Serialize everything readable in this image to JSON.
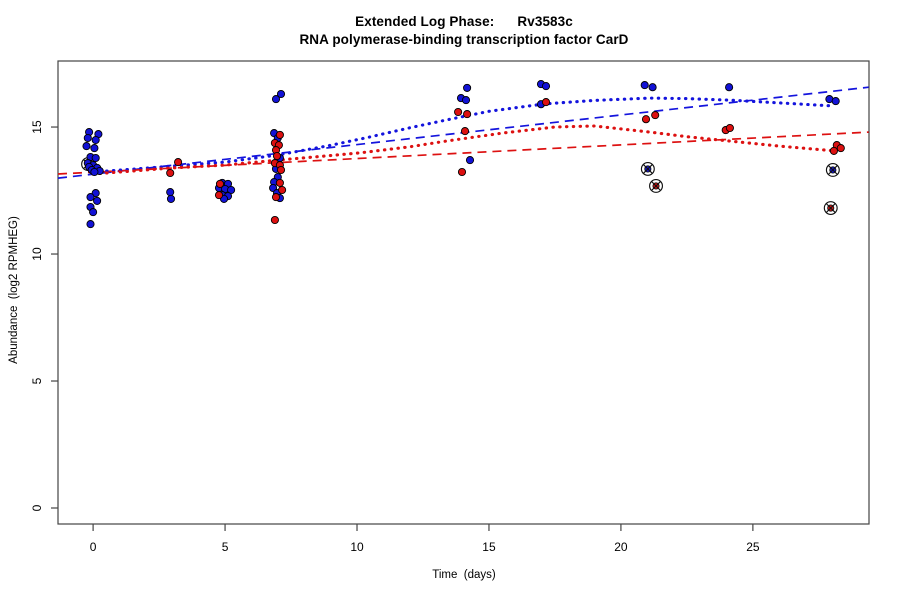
{
  "chart_data": {
    "type": "scatter",
    "title_line1": "Extended Log Phase:      Rv3583c",
    "title_line2": "RNA polymerase-binding transcription factor CarD",
    "xlabel": "Time  (days)",
    "ylabel": "Abundance  (log2 RPMHEG)",
    "xlim": [
      -1.33,
      29.4
    ],
    "ylim": [
      -0.63,
      17.6
    ],
    "x_ticks": [
      0,
      5,
      10,
      15,
      20,
      25
    ],
    "y_ticks": [
      0,
      5,
      10,
      15
    ],
    "grid": false,
    "legend": "none",
    "colors": {
      "blue": "#1414dd",
      "red": "#dd1111",
      "box": "#444444",
      "mark": "#111111"
    },
    "series": [
      {
        "name": "blue-group-points",
        "color": "#1212d6",
        "points": [
          [
            -0.15,
            14.8
          ],
          [
            0.2,
            14.72
          ],
          [
            -0.2,
            14.57
          ],
          [
            0.1,
            14.49
          ],
          [
            -0.25,
            14.25
          ],
          [
            0.05,
            14.17
          ],
          [
            -0.1,
            13.82
          ],
          [
            0.1,
            13.78
          ],
          [
            -0.2,
            13.58
          ],
          [
            0.0,
            13.5
          ],
          [
            -0.15,
            13.43
          ],
          [
            0.15,
            13.39
          ],
          [
            -0.05,
            13.31
          ],
          [
            0.25,
            13.27
          ],
          [
            0.05,
            13.23
          ],
          [
            0.1,
            12.4
          ],
          [
            -0.1,
            12.24
          ],
          [
            0.15,
            12.09
          ],
          [
            -0.1,
            11.85
          ],
          [
            0.0,
            11.65
          ],
          [
            -0.1,
            11.18
          ],
          [
            2.92,
            12.44
          ],
          [
            2.95,
            12.17
          ],
          [
            4.89,
            12.8
          ],
          [
            5.11,
            12.76
          ],
          [
            4.77,
            12.6
          ],
          [
            5.0,
            12.56
          ],
          [
            5.23,
            12.52
          ],
          [
            4.89,
            12.32
          ],
          [
            5.11,
            12.28
          ],
          [
            4.96,
            12.17
          ],
          [
            7.12,
            16.3
          ],
          [
            6.93,
            16.1
          ],
          [
            6.86,
            14.76
          ],
          [
            7.0,
            14.57
          ],
          [
            7.08,
            13.78
          ],
          [
            6.93,
            13.35
          ],
          [
            7.0,
            13.03
          ],
          [
            6.86,
            12.83
          ],
          [
            6.82,
            12.6
          ],
          [
            6.97,
            12.4
          ],
          [
            7.08,
            12.2
          ],
          [
            14.17,
            16.54
          ],
          [
            13.94,
            16.14
          ],
          [
            14.13,
            16.06
          ],
          [
            14.28,
            13.7
          ],
          [
            16.97,
            16.69
          ],
          [
            17.16,
            16.61
          ],
          [
            16.97,
            15.9
          ],
          [
            20.9,
            16.65
          ],
          [
            21.2,
            16.57
          ],
          [
            24.1,
            16.57
          ],
          [
            27.9,
            16.1
          ],
          [
            28.14,
            16.02
          ]
        ]
      },
      {
        "name": "red-group-points",
        "color": "#dc1010",
        "points": [
          [
            3.22,
            13.62
          ],
          [
            2.92,
            13.19
          ],
          [
            4.81,
            12.76
          ],
          [
            4.77,
            12.32
          ],
          [
            7.08,
            14.69
          ],
          [
            6.89,
            14.37
          ],
          [
            7.04,
            14.29
          ],
          [
            6.93,
            14.09
          ],
          [
            6.97,
            13.86
          ],
          [
            6.89,
            13.58
          ],
          [
            7.08,
            13.5
          ],
          [
            7.12,
            13.31
          ],
          [
            7.08,
            12.8
          ],
          [
            7.16,
            12.52
          ],
          [
            6.93,
            12.24
          ],
          [
            6.89,
            11.34
          ],
          [
            13.83,
            15.59
          ],
          [
            14.17,
            15.51
          ],
          [
            14.09,
            14.84
          ],
          [
            13.98,
            13.23
          ],
          [
            17.16,
            15.98
          ],
          [
            21.3,
            15.47
          ],
          [
            20.95,
            15.31
          ],
          [
            23.97,
            14.88
          ],
          [
            24.13,
            14.96
          ],
          [
            28.18,
            14.29
          ],
          [
            28.07,
            14.06
          ],
          [
            28.33,
            14.17
          ]
        ]
      }
    ],
    "circled_points": [
      {
        "x": -0.19,
        "y": 13.54,
        "color": "blue"
      },
      {
        "x": 21.02,
        "y": 13.35,
        "color": "blue"
      },
      {
        "x": 21.33,
        "y": 12.68,
        "color": "red"
      },
      {
        "x": 28.03,
        "y": 13.31,
        "color": "blue"
      },
      {
        "x": 27.95,
        "y": 11.81,
        "color": "red"
      }
    ],
    "lines": [
      {
        "name": "blue-linear-fit",
        "color": "#1414dd",
        "style": "longdash",
        "points": [
          [
            -1.33,
            12.99
          ],
          [
            29.39,
            16.57
          ]
        ]
      },
      {
        "name": "red-linear-fit",
        "color": "#dd1111",
        "style": "longdash",
        "points": [
          [
            -1.33,
            13.15
          ],
          [
            29.39,
            14.8
          ]
        ]
      },
      {
        "name": "blue-loess-fit",
        "color": "#1414dd",
        "style": "dotted",
        "points": [
          [
            0,
            13.23
          ],
          [
            1.5,
            13.34
          ],
          [
            3,
            13.46
          ],
          [
            5,
            13.62
          ],
          [
            7,
            13.9
          ],
          [
            9,
            14.28
          ],
          [
            10.5,
            14.61
          ],
          [
            12,
            14.97
          ],
          [
            13.4,
            15.28
          ],
          [
            15,
            15.62
          ],
          [
            17.1,
            15.91
          ],
          [
            19,
            16.05
          ],
          [
            21.1,
            16.14
          ],
          [
            22.5,
            16.12
          ],
          [
            24.1,
            16.06
          ],
          [
            26,
            15.95
          ],
          [
            28.1,
            15.83
          ]
        ]
      },
      {
        "name": "red-loess-fit",
        "color": "#dd1111",
        "style": "dotted",
        "points": [
          [
            0,
            13.15
          ],
          [
            1.5,
            13.27
          ],
          [
            3,
            13.39
          ],
          [
            5,
            13.5
          ],
          [
            7,
            13.7
          ],
          [
            8.5,
            13.83
          ],
          [
            10.1,
            13.98
          ],
          [
            12,
            14.22
          ],
          [
            13.4,
            14.45
          ],
          [
            15.5,
            14.76
          ],
          [
            17.5,
            15.0
          ],
          [
            19,
            15.04
          ],
          [
            21.1,
            14.8
          ],
          [
            22.5,
            14.62
          ],
          [
            24.1,
            14.45
          ],
          [
            26,
            14.25
          ],
          [
            28.1,
            14.06
          ]
        ]
      }
    ]
  }
}
